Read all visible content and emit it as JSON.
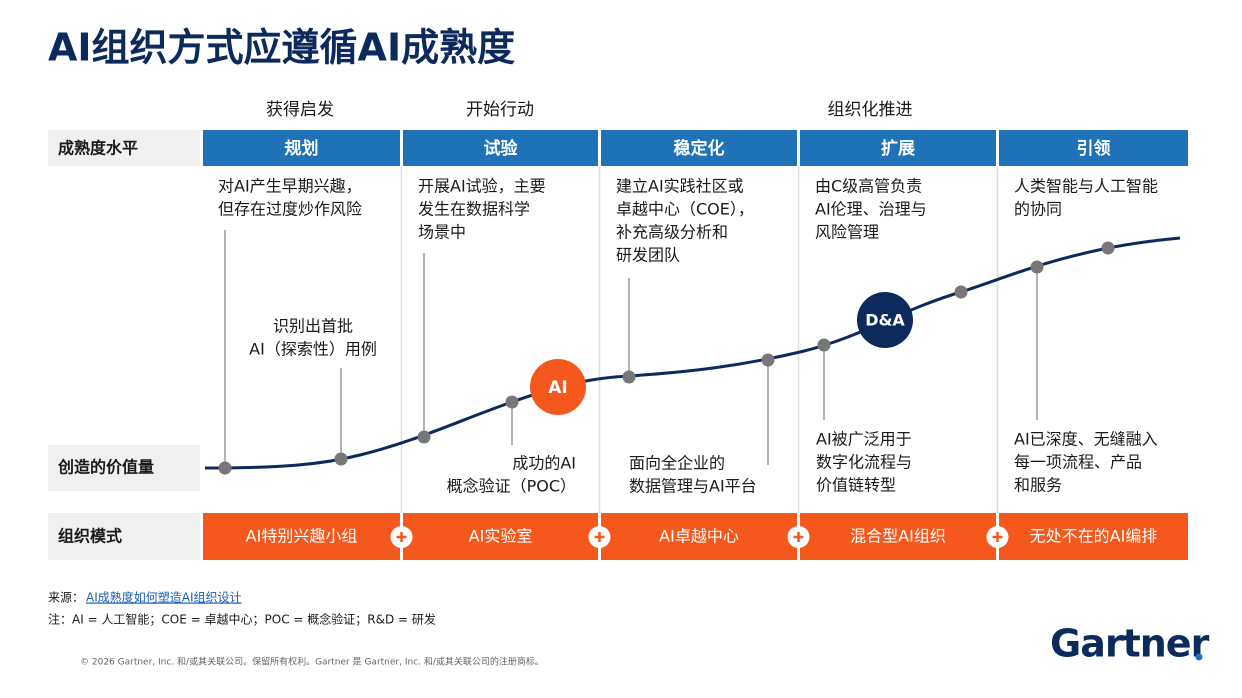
{
  "title": "AI组织方式应遵循AI成熟度",
  "phases": [
    "获得启发",
    "开始行动",
    "组织化推进"
  ],
  "row_labels": {
    "maturity": "成熟度水平",
    "value": "创造的价值量",
    "org": "组织模式"
  },
  "levels": [
    {
      "name": "规划",
      "description": [
        "对AI产生早期兴趣，",
        "但存在过度炒作风险"
      ],
      "annotation": [
        "识别出首批",
        "AI（探索性）用例"
      ],
      "org_mode": "AI特别兴趣小组"
    },
    {
      "name": "试验",
      "description": [
        "开展AI试验，主要",
        "发生在数据科学",
        "场景中"
      ],
      "annotation": [
        "成功的AI",
        "概念验证（POC）"
      ],
      "org_mode": "AI实验室"
    },
    {
      "name": "稳定化",
      "description": [
        "建立AI实践社区或",
        "卓越中心（COE），",
        "补充高级分析和",
        "研发团队"
      ],
      "annotation": [
        "面向全企业的",
        "数据管理与AI平台"
      ],
      "org_mode": "AI卓越中心"
    },
    {
      "name": "扩展",
      "description": [
        "由C级高管负责",
        "AI伦理、治理与",
        "风险管理"
      ],
      "annotation": [
        "AI被广泛用于",
        "数字化流程与",
        "价值链转型"
      ],
      "org_mode": "混合型AI组织"
    },
    {
      "name": "引领",
      "description": [
        "人类智能与人工智能",
        "的协同"
      ],
      "annotation": [
        "AI已深度、无缝融入",
        "每一项流程、产品",
        "和服务"
      ],
      "org_mode": "无处不在的AI编排"
    }
  ],
  "markers": [
    "AI",
    "D&A"
  ],
  "source": {
    "label": "来源：",
    "link": "AI成熟度如何塑造AI组织设计"
  },
  "note": "注：AI = 人工智能；COE = 卓越中心；POC = 概念验证；R&D = 研发",
  "copyright": "© 2026 Gartner, Inc. 和/或其关联公司。保留所有权利。Gartner 是 Gartner, Inc. 和/或其关联公司的注册商标。",
  "logo": "Gartner"
}
